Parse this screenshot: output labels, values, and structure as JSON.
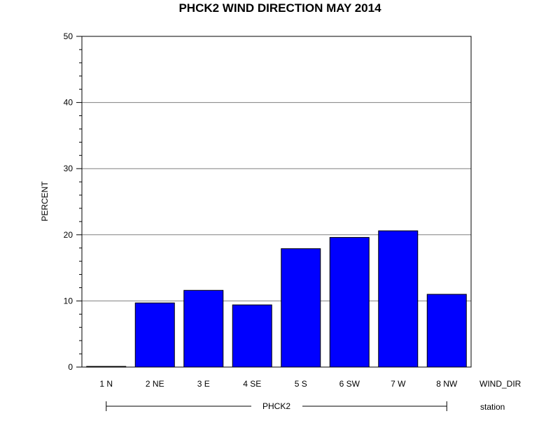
{
  "chart_data": {
    "type": "bar",
    "title": "PHCK2 WIND DIRECTION MAY 2014",
    "ylabel": "PERCENT",
    "xlabel": "WIND_DIR",
    "group_axis_label": "station",
    "group_label": "PHCK2",
    "categories": [
      "1 N",
      "2 NE",
      "3 E",
      "4 SE",
      "5 S",
      "6 SW",
      "7 W",
      "8 NW"
    ],
    "values": [
      0.1,
      9.7,
      11.6,
      9.4,
      17.9,
      19.6,
      20.6,
      11.0
    ],
    "ylim": [
      0,
      50
    ],
    "yticks": [
      "0",
      "10",
      "20",
      "30",
      "40",
      "50"
    ],
    "grid": true,
    "bar_color": "#0000ff"
  }
}
